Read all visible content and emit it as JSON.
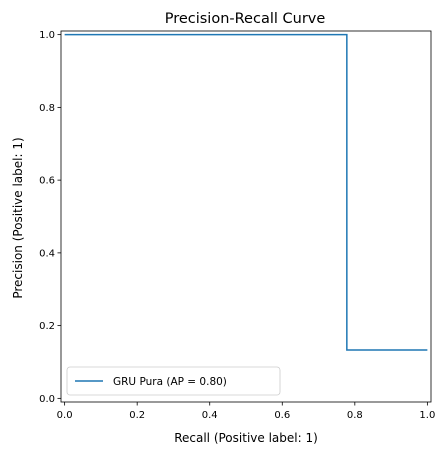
{
  "chart_data": {
    "type": "line",
    "title": "Precision-Recall Curve",
    "xlabel": "Recall (Positive label: 1)",
    "ylabel": "Precision (Positive label: 1)",
    "xlim": [
      -0.01,
      1.01
    ],
    "ylim": [
      -0.01,
      1.01
    ],
    "xticks": [
      0.0,
      0.2,
      0.4,
      0.6,
      0.8,
      1.0
    ],
    "yticks": [
      0.0,
      0.2,
      0.4,
      0.6,
      0.8,
      1.0
    ],
    "xtick_labels": [
      "0.0",
      "0.2",
      "0.4",
      "0.6",
      "0.8",
      "1.0"
    ],
    "ytick_labels": [
      "0.0",
      "0.2",
      "0.4",
      "0.6",
      "0.8",
      "1.0"
    ],
    "grid": false,
    "legend_position": "lower-left",
    "series": [
      {
        "name": "GRU Pura (AP = 0.80)",
        "color": "#1f77b4",
        "drawstyle": "steps-post",
        "x": [
          0.0,
          0.778,
          0.778,
          1.0
        ],
        "y": [
          1.0,
          1.0,
          0.133,
          0.133
        ]
      }
    ]
  }
}
